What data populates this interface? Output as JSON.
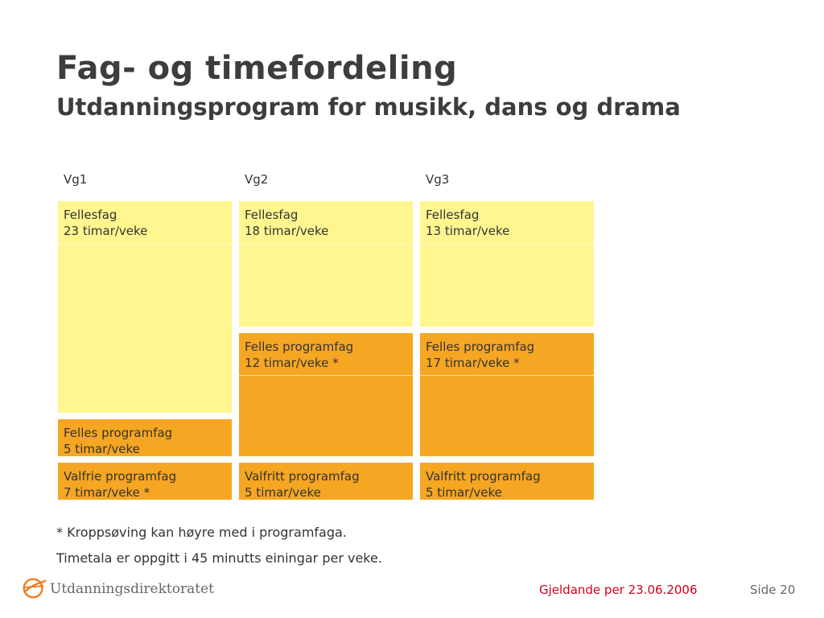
{
  "header": {
    "title": "Fag- og timefordeling",
    "subtitle": "Utdanningsprogram for musikk, dans og drama"
  },
  "columns": [
    {
      "label": "Vg1",
      "blocks": [
        {
          "name": "Fellesfag",
          "hours": "23 timar/veke"
        },
        {
          "name": "Felles programfag",
          "hours": "5 timar/veke"
        },
        {
          "name": "Valfrie programfag",
          "hours": "7 timar/veke *"
        }
      ]
    },
    {
      "label": "Vg2",
      "blocks": [
        {
          "name": "Fellesfag",
          "hours": "18 timar/veke"
        },
        {
          "name": "Felles programfag",
          "hours": "12 timar/veke *"
        },
        {
          "name": "Valfritt programfag",
          "hours": "5 timar/veke"
        }
      ]
    },
    {
      "label": "Vg3",
      "blocks": [
        {
          "name": "Fellesfag",
          "hours": "13 timar/veke"
        },
        {
          "name": "Felles programfag",
          "hours": "17 timar/veke *"
        },
        {
          "name": "Valfritt programfag",
          "hours": "5 timar/veke"
        }
      ]
    }
  ],
  "footnotes": [
    "* Kroppsøving kan høyre med i programfaga.",
    "Timetala er oppgitt i 45 minutts einingar per veke."
  ],
  "footer": {
    "logo_text": "Utdanningsdirektoratet",
    "logo_icon": "utdanningsdirektoratet-logo-icon",
    "date": "Gjeldande per 23.06.2006",
    "page": "Side 20"
  },
  "colors": {
    "fellesfag": "#fff68f",
    "programfag": "#f5a623",
    "date_text": "#d0001b"
  }
}
